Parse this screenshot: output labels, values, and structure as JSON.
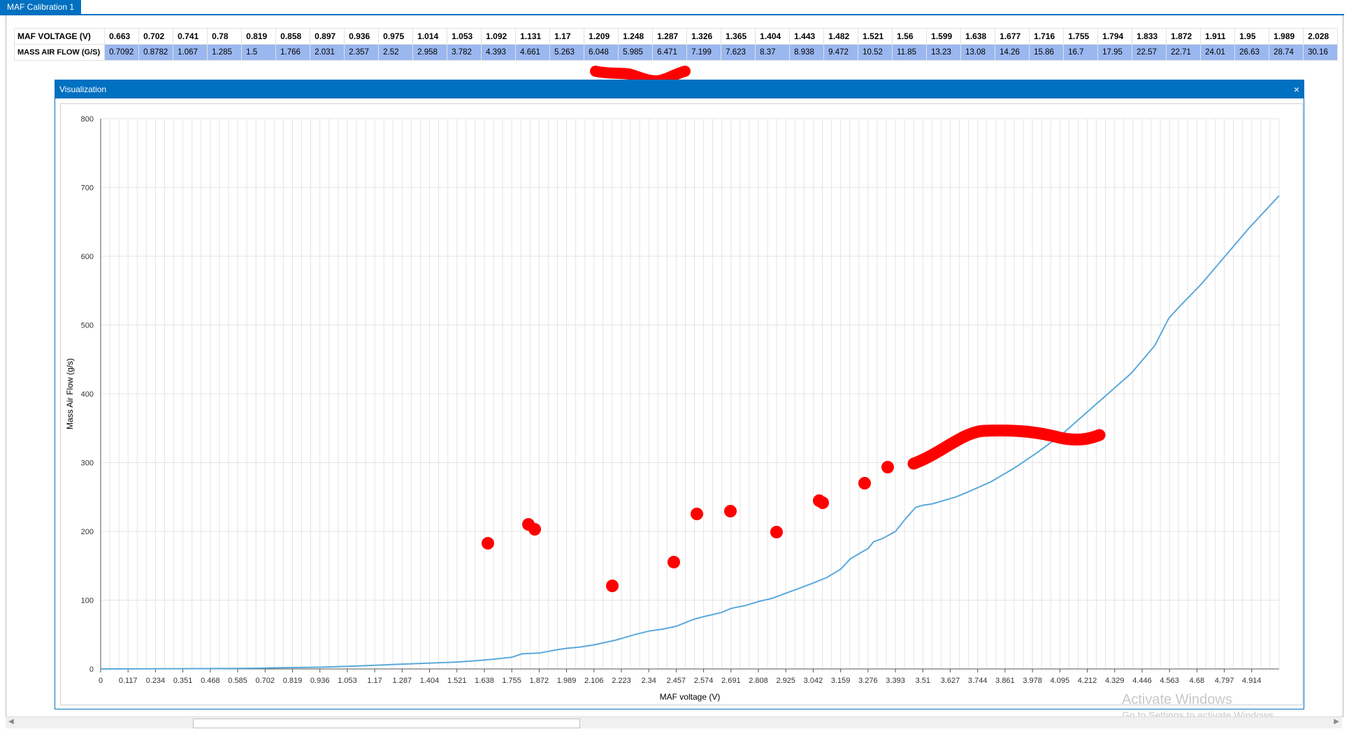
{
  "tab": {
    "title": "MAF Calibration 1"
  },
  "table": {
    "row_headers": [
      "MAF VOLTAGE (V)",
      "MASS AIR FLOW (G/S)"
    ],
    "voltage": [
      "0.663",
      "0.702",
      "0.741",
      "0.78",
      "0.819",
      "0.858",
      "0.897",
      "0.936",
      "0.975",
      "1.014",
      "1.053",
      "1.092",
      "1.131",
      "1.17",
      "1.209",
      "1.248",
      "1.287",
      "1.326",
      "1.365",
      "1.404",
      "1.443",
      "1.482",
      "1.521",
      "1.56",
      "1.599",
      "1.638",
      "1.677",
      "1.716",
      "1.755",
      "1.794",
      "1.833",
      "1.872",
      "1.911",
      "1.95",
      "1.989",
      "2.028"
    ],
    "airflow": [
      "0.7092",
      "0.8782",
      "1.067",
      "1.285",
      "1.5",
      "1.766",
      "2.031",
      "2.357",
      "2.52",
      "2.958",
      "3.782",
      "4.393",
      "4.661",
      "5.263",
      "6.048",
      "5.985",
      "6.471",
      "7.199",
      "7.623",
      "8.37",
      "8.938",
      "9.472",
      "10.52",
      "11.85",
      "13.23",
      "13.08",
      "14.26",
      "15.86",
      "16.7",
      "17.95",
      "22.57",
      "22.71",
      "24.01",
      "26.63",
      "28.74",
      "30.16"
    ]
  },
  "viz": {
    "title": "Visualization",
    "close_glyph": "×"
  },
  "chart_data": {
    "type": "line",
    "xlabel": "MAF voltage (V)",
    "ylabel": "Mass Air Flow (g/s)",
    "xlim": [
      0,
      5.031
    ],
    "ylim": [
      0,
      800
    ],
    "grid": true,
    "y_ticks": [
      "0",
      "100",
      "200",
      "300",
      "400",
      "500",
      "600",
      "700",
      "800"
    ],
    "x_ticks": [
      "0",
      "0.117",
      "0.234",
      "0.351",
      "0.468",
      "0.585",
      "0.702",
      "0.819",
      "0.936",
      "1.053",
      "1.17",
      "1.287",
      "1.404",
      "1.521",
      "1.638",
      "1.755",
      "1.872",
      "1.989",
      "2.106",
      "2.223",
      "2.34",
      "2.457",
      "2.574",
      "2.691",
      "2.808",
      "2.925",
      "3.042",
      "3.159",
      "3.276",
      "3.393",
      "3.51",
      "3.627",
      "3.744",
      "3.861",
      "3.978",
      "4.095",
      "4.212",
      "4.329",
      "4.446",
      "4.563",
      "4.68",
      "4.797",
      "4.914"
    ],
    "series": [
      {
        "color": "#5aa9dc",
        "x": [
          0,
          0.585,
          0.702,
          0.819,
          0.936,
          1.053,
          1.17,
          1.287,
          1.404,
          1.521,
          1.6,
          1.638,
          1.7,
          1.755,
          1.8,
          1.872,
          1.95,
          1.989,
          2.05,
          2.106,
          2.2,
          2.28,
          2.34,
          2.4,
          2.457,
          2.53,
          2.574,
          2.65,
          2.691,
          2.75,
          2.808,
          2.87,
          2.925,
          2.98,
          3.042,
          3.1,
          3.159,
          3.2,
          3.25,
          3.276,
          3.3,
          3.34,
          3.393,
          3.44,
          3.48,
          3.51,
          3.55,
          3.6,
          3.65,
          3.7,
          3.8,
          3.9,
          4.0,
          4.1,
          4.2,
          4.3,
          4.4,
          4.5,
          4.56,
          4.6,
          4.7,
          4.8,
          4.9,
          5.031
        ],
        "y": [
          0,
          0.7,
          1.3,
          2,
          2.5,
          3.8,
          5.3,
          7,
          8.5,
          10,
          12,
          13,
          15,
          17,
          22,
          23,
          28,
          30,
          32,
          35,
          42,
          50,
          55,
          58,
          62,
          72,
          76,
          82,
          88,
          92,
          98,
          103,
          110,
          117,
          125,
          133,
          145,
          160,
          170,
          175,
          185,
          190,
          200,
          220,
          235,
          238,
          240,
          245,
          250,
          257,
          272,
          292,
          315,
          340,
          370,
          400,
          430,
          470,
          510,
          525,
          560,
          600,
          640,
          688
        ]
      }
    ],
    "highlight_color": "#ff0000"
  },
  "watermark": {
    "line1": "Activate Windows",
    "line2": "Go to Settings to activate Windows."
  }
}
